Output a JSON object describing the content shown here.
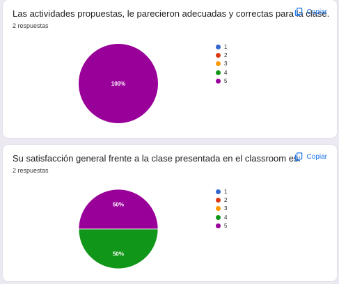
{
  "copy_label": "Copiar",
  "legend": [
    {
      "label": "1",
      "color": "#3366cc"
    },
    {
      "label": "2",
      "color": "#dc3912"
    },
    {
      "label": "3",
      "color": "#ff9900"
    },
    {
      "label": "4",
      "color": "#109618"
    },
    {
      "label": "5",
      "color": "#990099"
    }
  ],
  "questions": [
    {
      "title": "Las actividades propuestas, le parecieron adecuadas y correctas para la clase.",
      "responses": "2 respuestas"
    },
    {
      "title": "Su satisfacción general frente a la clase presentada en el classroom es:",
      "responses": "2 respuestas"
    }
  ],
  "chart_data": [
    {
      "type": "pie",
      "categories": [
        "1",
        "2",
        "3",
        "4",
        "5"
      ],
      "values": [
        0,
        0,
        0,
        0,
        100
      ],
      "slice_labels": [
        "",
        "",
        "",
        "",
        "100%"
      ],
      "legend_position": "right"
    },
    {
      "type": "pie",
      "categories": [
        "1",
        "2",
        "3",
        "4",
        "5"
      ],
      "values": [
        0,
        0,
        0,
        50,
        50
      ],
      "slice_labels": [
        "",
        "",
        "",
        "50%",
        "50%"
      ],
      "legend_position": "right"
    }
  ]
}
